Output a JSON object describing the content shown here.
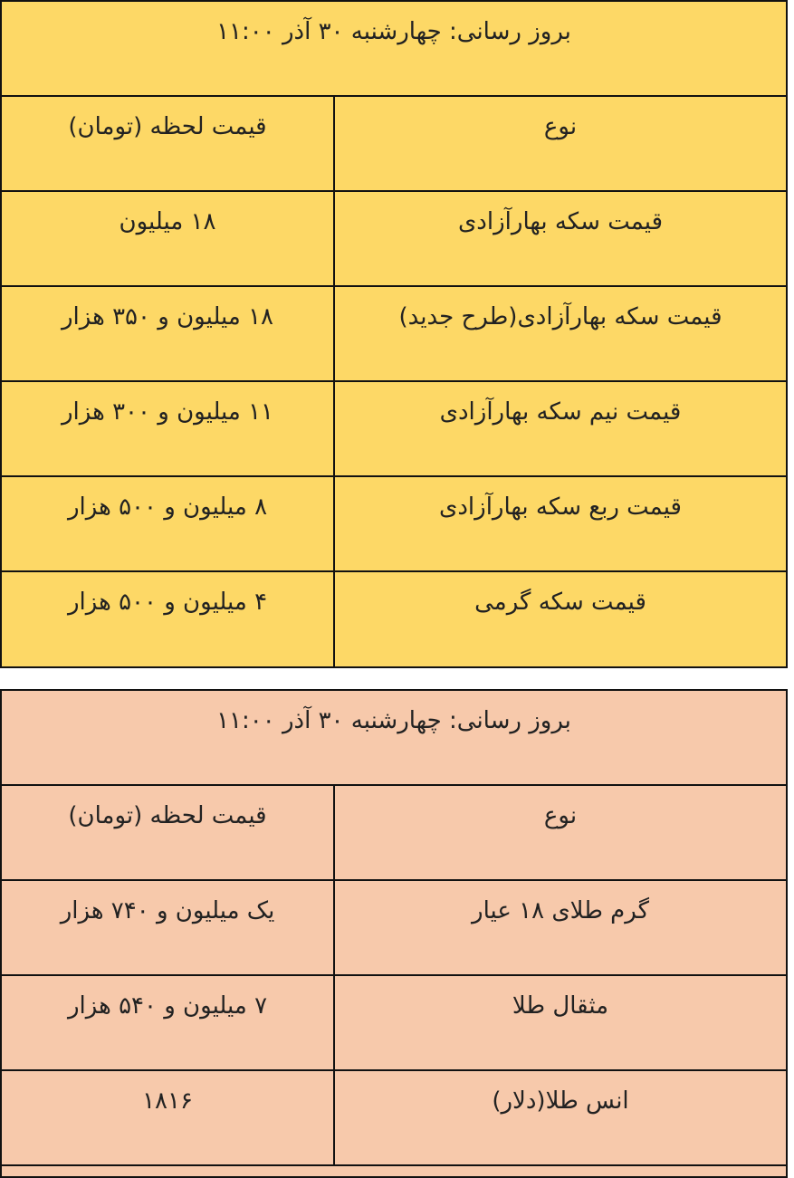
{
  "tables": [
    {
      "update_text": "بروز رسانی: چهارشنبه ۳۰ آذر ۱۱:۰۰",
      "header": {
        "type": "نوع",
        "price": "قیمت لحظه (تومان)"
      },
      "background": "#FDD866",
      "rows": [
        {
          "type": "قیمت سکه بهارآزادی",
          "price": "۱۸  میلیون"
        },
        {
          "type": "قیمت سکه بهارآزادی(طرح جدید)",
          "price": "۱۸  میلیون و ۳۵۰  هزار"
        },
        {
          "type": "قیمت نیم سکه بهارآزادی",
          "price": "۱۱ میلیون و ۳۰۰ هزار"
        },
        {
          "type": "قیمت ربع سکه بهارآزادی",
          "price": "۸ میلیون و ۵۰۰ هزار"
        },
        {
          "type": "قیمت سکه گرمی",
          "price": "۴ میلیون و ۵۰۰ هزار"
        }
      ]
    },
    {
      "update_text": "بروز رسانی: چهارشنبه ۳۰ آذر ۱۱:۰۰",
      "header": {
        "type": "نوع",
        "price": "قیمت لحظه (تومان)"
      },
      "background": "#F7C9AB",
      "rows": [
        {
          "type": "گرم طلای ۱۸ عیار",
          "price": "یک میلیون و ۷۴۰ هزار"
        },
        {
          "type": "مثقال طلا",
          "price": "۷ میلیون و ۵۴۰ هزار"
        },
        {
          "type": "انس طلا(دلار)",
          "price": "۱۸۱۶"
        }
      ]
    }
  ]
}
